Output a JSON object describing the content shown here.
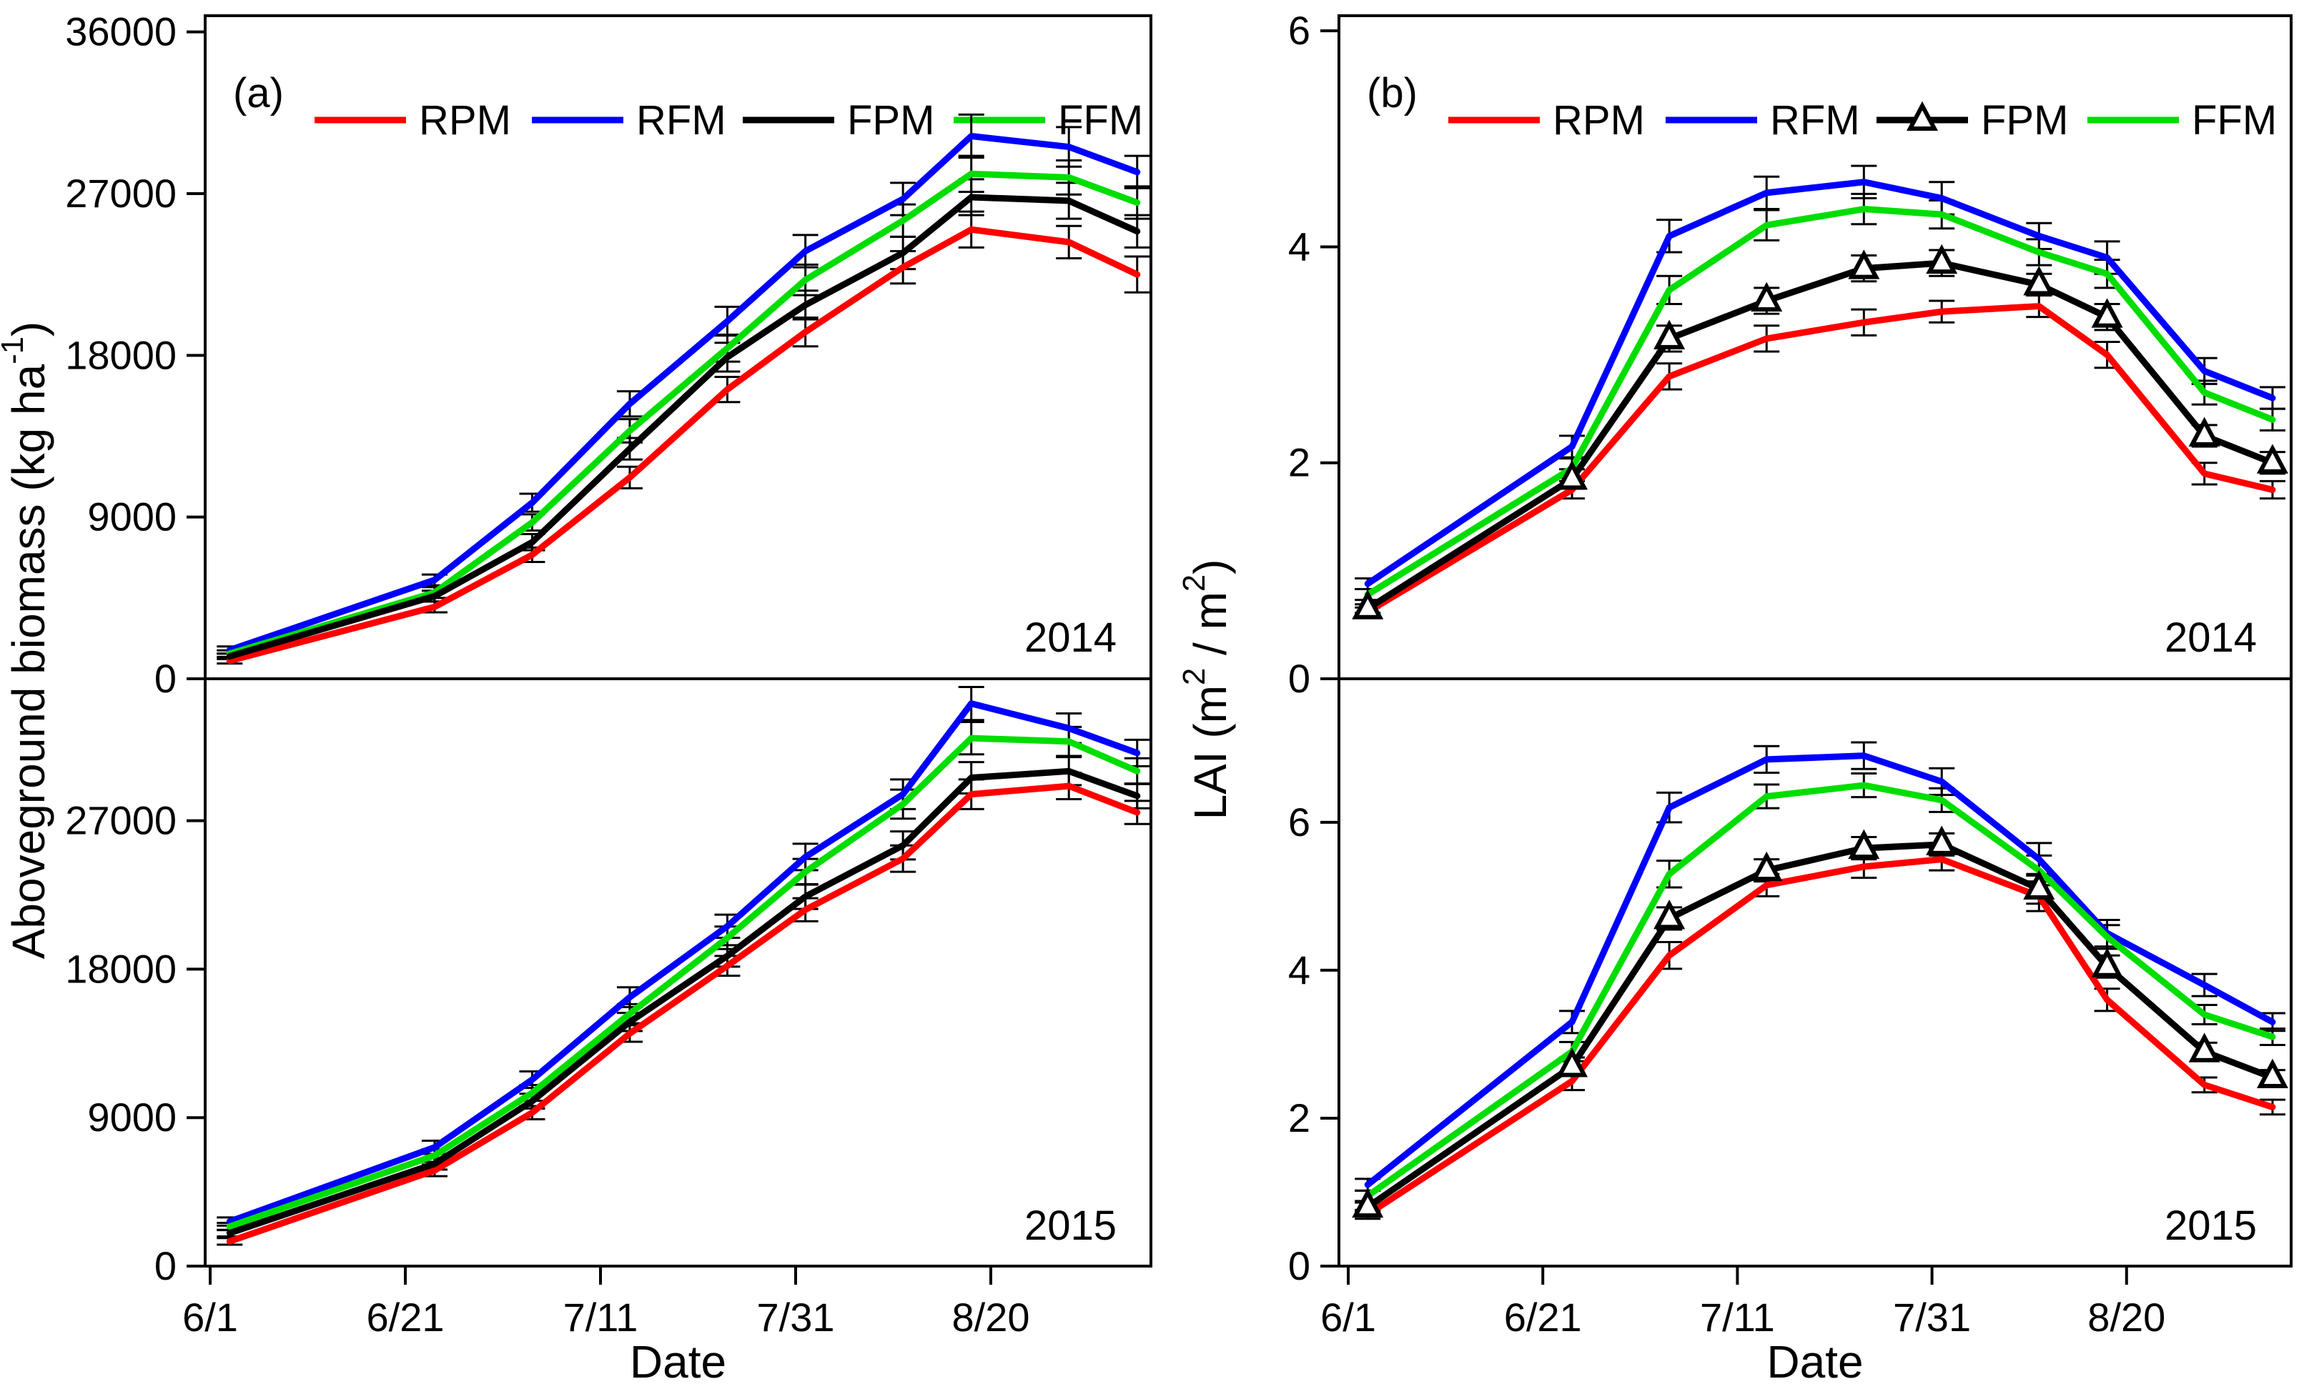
{
  "figure": {
    "background": "#ffffff",
    "text_color": "#000000",
    "axis_color": "#000000"
  },
  "chart_data": {
    "type": "line",
    "title": "",
    "x_axis": {
      "label": "Date",
      "tick_labels": [
        "6/1",
        "6/21",
        "7/11",
        "7/31",
        "8/20"
      ],
      "tick_days": [
        0,
        20,
        40,
        60,
        80
      ],
      "domain_days": [
        -0.5,
        96.5
      ],
      "sample_days": [
        2,
        23,
        33,
        43,
        53,
        61,
        71,
        78,
        88,
        95
      ],
      "sample_dates": [
        "6/3",
        "6/24",
        "7/4",
        "7/14",
        "7/24",
        "8/1",
        "8/11",
        "8/18",
        "8/28",
        "9/4"
      ]
    },
    "series_colors": {
      "RPM": "#ff0000",
      "RFM": "#0000ff",
      "FPM": "#000000",
      "FFM": "#00dd00"
    },
    "legend_names": [
      "RPM",
      "RFM",
      "FPM",
      "FFM"
    ],
    "panels": [
      {
        "id": "a",
        "label": "(a)",
        "ylabel_parts": [
          {
            "t": "Aboveground biomass (kg ha"
          },
          {
            "t": "-1",
            "sup": true
          },
          {
            "t": ")"
          }
        ],
        "xlabel": "Date",
        "legend": [
          {
            "name": "RPM",
            "marker": "line"
          },
          {
            "name": "RFM",
            "marker": "line"
          },
          {
            "name": "FPM",
            "marker": "line"
          },
          {
            "name": "FFM",
            "marker": "line"
          }
        ],
        "subplots": [
          {
            "year": "2014",
            "position": "top",
            "ylim": [
              0,
              36900
            ],
            "ytick_values": [
              0,
              9000,
              18000,
              27000,
              36000
            ],
            "ytick_labels": [
              "0",
              "9000",
              "18000",
              "27000",
              "36000"
            ],
            "series": [
              {
                "name": "RPM",
                "values": [
                  1000,
                  4000,
                  6900,
                  11200,
                  16100,
                  19300,
                  22900,
                  25000,
                  24300,
                  22500
                ],
                "err": [
                  150,
                  300,
                  400,
                  600,
                  700,
                  800,
                  900,
                  1000,
                  900,
                  1000
                ]
              },
              {
                "name": "RFM",
                "values": [
                  1600,
                  5500,
                  9800,
                  15300,
                  19900,
                  23800,
                  26700,
                  30200,
                  29600,
                  28200
                ],
                "err": [
                  200,
                  300,
                  500,
                  700,
                  800,
                  900,
                  900,
                  1200,
                  1100,
                  900
                ]
              },
              {
                "name": "FPM",
                "values": [
                  1250,
                  4600,
                  7600,
                  12800,
                  17900,
                  20800,
                  23700,
                  26800,
                  26600,
                  24900
                ],
                "err": [
                  150,
                  300,
                  450,
                  600,
                  800,
                  800,
                  900,
                  1000,
                  1000,
                  900
                ]
              },
              {
                "name": "FFM",
                "values": [
                  1400,
                  4800,
                  8700,
                  13800,
                  18400,
                  22200,
                  25500,
                  28100,
                  27900,
                  26500
                ],
                "err": [
                  180,
                  300,
                  450,
                  650,
                  750,
                  850,
                  900,
                  1000,
                  950,
                  900
                ]
              }
            ]
          },
          {
            "year": "2015",
            "position": "bottom",
            "ylim": [
              0,
              35600
            ],
            "ytick_values": [
              0,
              9000,
              18000,
              27000
            ],
            "ytick_labels": [
              "0",
              "9000",
              "18000",
              "27000"
            ],
            "series": [
              {
                "name": "RPM",
                "values": [
                  1500,
                  5800,
                  9300,
                  14100,
                  18200,
                  21600,
                  24700,
                  28600,
                  29100,
                  27500
                ],
                "err": [
                  200,
                  350,
                  400,
                  500,
                  600,
                  700,
                  800,
                  900,
                  800,
                  700
                ]
              },
              {
                "name": "RFM",
                "values": [
                  2700,
                  7200,
                  11300,
                  16300,
                  20600,
                  24800,
                  28600,
                  34100,
                  32600,
                  31100
                ],
                "err": [
                  250,
                  400,
                  500,
                  600,
                  700,
                  800,
                  900,
                  1000,
                  900,
                  800
                ]
              },
              {
                "name": "FPM",
                "values": [
                  2000,
                  6200,
                  10000,
                  14800,
                  18800,
                  22400,
                  25500,
                  29600,
                  30000,
                  28500
                ],
                "err": [
                  200,
                  350,
                  450,
                  550,
                  650,
                  750,
                  850,
                  950,
                  850,
                  750
                ]
              },
              {
                "name": "FFM",
                "values": [
                  2400,
                  6700,
                  10500,
                  15300,
                  19900,
                  23900,
                  28000,
                  32000,
                  31800,
                  30000
                ],
                "err": [
                  220,
                  380,
                  480,
                  580,
                  680,
                  780,
                  880,
                  980,
                  880,
                  780
                ]
              }
            ]
          }
        ]
      },
      {
        "id": "b",
        "label": "(b)",
        "ylabel_parts": [
          {
            "t": "LAI (m"
          },
          {
            "t": "2",
            "sup": true
          },
          {
            "t": " / m"
          },
          {
            "t": "2",
            "sup": true
          },
          {
            "t": ")"
          }
        ],
        "xlabel": "Date",
        "legend": [
          {
            "name": "RPM",
            "marker": "line"
          },
          {
            "name": "RFM",
            "marker": "line"
          },
          {
            "name": "FPM",
            "marker": "line-triangle"
          },
          {
            "name": "FFM",
            "marker": "line"
          }
        ],
        "subplots": [
          {
            "year": "2014",
            "position": "top",
            "ylim": [
              0,
              6.14
            ],
            "ytick_values": [
              0,
              2,
              4,
              6
            ],
            "ytick_labels": [
              "0",
              "2",
              "4",
              "6"
            ],
            "series": [
              {
                "name": "RPM",
                "values": [
                  0.62,
                  1.75,
                  2.8,
                  3.15,
                  3.3,
                  3.4,
                  3.45,
                  3.0,
                  1.9,
                  1.75
                ],
                "err": [
                  0.04,
                  0.08,
                  0.12,
                  0.12,
                  0.12,
                  0.1,
                  0.1,
                  0.12,
                  0.1,
                  0.08
                ]
              },
              {
                "name": "RFM",
                "values": [
                  0.88,
                  2.15,
                  4.1,
                  4.5,
                  4.6,
                  4.45,
                  4.1,
                  3.9,
                  2.85,
                  2.6
                ],
                "err": [
                  0.05,
                  0.1,
                  0.15,
                  0.15,
                  0.15,
                  0.15,
                  0.12,
                  0.15,
                  0.12,
                  0.1
                ]
              },
              {
                "name": "FPM",
                "values": [
                  0.65,
                  1.85,
                  3.15,
                  3.5,
                  3.8,
                  3.85,
                  3.65,
                  3.35,
                  2.25,
                  2.0
                ],
                "err": [
                  0.04,
                  0.09,
                  0.12,
                  0.12,
                  0.12,
                  0.12,
                  0.1,
                  0.12,
                  0.1,
                  0.1
                ]
              },
              {
                "name": "FFM",
                "values": [
                  0.78,
                  1.95,
                  3.6,
                  4.2,
                  4.35,
                  4.3,
                  3.95,
                  3.75,
                  2.65,
                  2.4
                ],
                "err": [
                  0.05,
                  0.09,
                  0.13,
                  0.14,
                  0.14,
                  0.13,
                  0.12,
                  0.13,
                  0.11,
                  0.1
                ]
              }
            ]
          },
          {
            "year": "2015",
            "position": "bottom",
            "ylim": [
              0,
              7.94
            ],
            "ytick_values": [
              0,
              2,
              4,
              6
            ],
            "ytick_labels": [
              "0",
              "2",
              "4",
              "6"
            ],
            "series": [
              {
                "name": "RPM",
                "values": [
                  0.7,
                  2.5,
                  4.2,
                  5.15,
                  5.4,
                  5.5,
                  5.0,
                  3.6,
                  2.45,
                  2.15
                ],
                "err": [
                  0.06,
                  0.12,
                  0.18,
                  0.15,
                  0.15,
                  0.15,
                  0.2,
                  0.15,
                  0.1,
                  0.1
                ]
              },
              {
                "name": "RFM",
                "values": [
                  1.1,
                  3.3,
                  6.2,
                  6.85,
                  6.9,
                  6.55,
                  5.5,
                  4.5,
                  3.8,
                  3.3
                ],
                "err": [
                  0.08,
                  0.15,
                  0.2,
                  0.18,
                  0.18,
                  0.18,
                  0.22,
                  0.18,
                  0.15,
                  0.12
                ]
              },
              {
                "name": "FPM",
                "values": [
                  0.8,
                  2.7,
                  4.7,
                  5.35,
                  5.65,
                  5.7,
                  5.1,
                  4.05,
                  2.9,
                  2.55
                ],
                "err": [
                  0.06,
                  0.12,
                  0.15,
                  0.15,
                  0.15,
                  0.15,
                  0.2,
                  0.15,
                  0.12,
                  0.1
                ]
              },
              {
                "name": "FFM",
                "values": [
                  0.95,
                  2.9,
                  5.3,
                  6.35,
                  6.5,
                  6.3,
                  5.35,
                  4.45,
                  3.4,
                  3.1
                ],
                "err": [
                  0.07,
                  0.13,
                  0.18,
                  0.16,
                  0.16,
                  0.16,
                  0.2,
                  0.16,
                  0.13,
                  0.11
                ]
              }
            ]
          }
        ]
      }
    ]
  }
}
